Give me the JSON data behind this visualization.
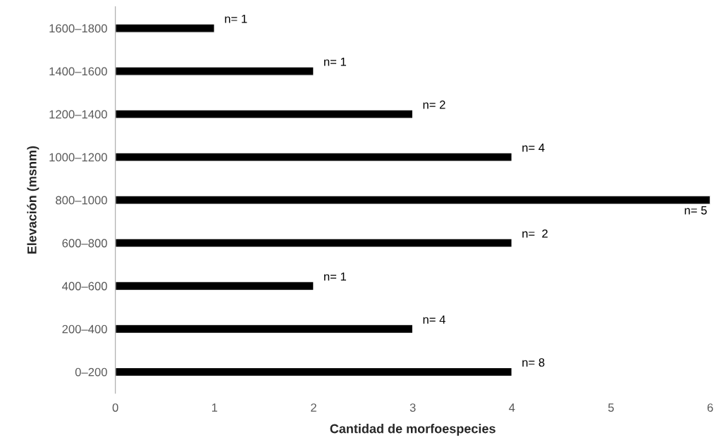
{
  "chart_data": {
    "type": "bar",
    "orientation": "horizontal",
    "xlabel": "Cantidad de morfoespecies",
    "ylabel": "Elevación (msnm)",
    "categories": [
      "1600–1800",
      "1400–1600",
      "1200–1400",
      "1000–1200",
      "800–1000",
      "600–800",
      "400–600",
      "200–400",
      "0–200"
    ],
    "values": [
      1,
      2,
      3,
      4,
      6,
      4,
      2,
      3,
      4
    ],
    "color": "#000000",
    "xlim": [
      0,
      6
    ],
    "xticks": [
      0,
      1,
      2,
      3,
      4,
      5,
      6
    ],
    "grid": false,
    "legend": false,
    "annotations": [
      {
        "text": "n= 1",
        "x": 1,
        "y": "1600–1800"
      },
      {
        "text": "n= 1",
        "x": 2,
        "y": "1400–1600"
      },
      {
        "text": "n= 2",
        "x": 3,
        "y": "1200–1400"
      },
      {
        "text": "n= 4",
        "x": 4,
        "y": "1000–1200"
      },
      {
        "text": "n= 5",
        "x": 6,
        "y": "800–1000"
      },
      {
        "text": "n=  2",
        "x": 4,
        "y": "600–800"
      },
      {
        "text": "n= 1",
        "x": 2,
        "y": "400–600"
      },
      {
        "text": "n= 4",
        "x": 3,
        "y": "200–400"
      },
      {
        "text": "n= 8",
        "x": 4,
        "y": "0–200"
      }
    ]
  }
}
